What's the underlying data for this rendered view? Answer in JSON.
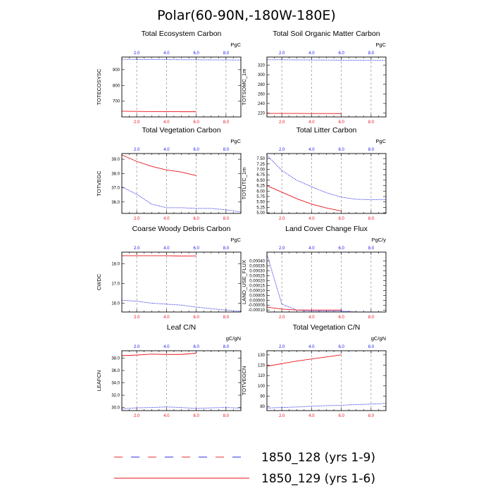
{
  "figure": {
    "title": "Polar(60-90N,-180W-180E)"
  },
  "colors": {
    "case1": "#1616e8",
    "case2": "#e8141b",
    "gridline": "#9a9a9a"
  },
  "legend": [
    {
      "label": "1850_128 (yrs 1-9)",
      "style": "dashed",
      "color_key": "legend_dash"
    },
    {
      "label": "1850_129 (yrs 1-6)",
      "style": "solid",
      "color_key": "case2"
    }
  ],
  "chart_data": [
    {
      "type": "line",
      "title": "Total Ecosystem Carbon",
      "ylabel": "TOTECOSYSC",
      "units": "PgC",
      "xlim": [
        1,
        9
      ],
      "ylim": [
        600,
        980
      ],
      "yticks": [
        700,
        800,
        900
      ],
      "xticks_bottom": [
        "2.0",
        "4.0",
        "6.0",
        "8.0"
      ],
      "xticks_top": [
        "2.0",
        "4.0",
        "6.0",
        "8.0"
      ],
      "series": [
        {
          "x": [
            1,
            2,
            3,
            4,
            5,
            6,
            7,
            8,
            9
          ],
          "y": [
            966,
            965,
            964,
            964,
            963,
            963,
            962,
            962,
            961
          ],
          "style": "dotted",
          "color_key": "case1"
        },
        {
          "x": [
            1,
            2,
            3,
            4,
            5,
            6
          ],
          "y": [
            636,
            635,
            634,
            634,
            633,
            633
          ],
          "style": "solid",
          "color_key": "case2"
        }
      ]
    },
    {
      "type": "line",
      "title": "Total Soil Organic Matter Carbon",
      "ylabel": "TOTSOMC_1m",
      "units": "PgC",
      "xlim": [
        1,
        9
      ],
      "ylim": [
        212,
        337
      ],
      "yticks": [
        220,
        240,
        260,
        280,
        300,
        320
      ],
      "xticks_bottom": [
        "2.0",
        "4.0",
        "6.0",
        "8.0"
      ],
      "xticks_top": [
        "2.0",
        "4.0",
        "6.0",
        "8.0"
      ],
      "series": [
        {
          "x": [
            1,
            2,
            3,
            4,
            5,
            6,
            7,
            8,
            9
          ],
          "y": [
            331.5,
            331.3,
            331.1,
            330.9,
            330.7,
            330.5,
            330.3,
            330.1,
            329.9
          ],
          "style": "dotted",
          "color_key": "case1"
        },
        {
          "x": [
            1,
            2,
            3,
            4,
            5,
            6
          ],
          "y": [
            219.3,
            219.2,
            219.2,
            219.1,
            219.1,
            219.0
          ],
          "style": "solid",
          "color_key": "case2"
        }
      ]
    },
    {
      "type": "line",
      "title": "Total Vegetation Carbon",
      "ylabel": "TOTVEGC",
      "units": "PgC",
      "xlim": [
        1,
        9
      ],
      "ylim": [
        35.2,
        39.4
      ],
      "yticks": [
        36.0,
        37.0,
        38.0,
        39.0
      ],
      "yticks_fmt": 1,
      "xticks_bottom": [
        "2.0",
        "4.0",
        "6.0",
        "8.0"
      ],
      "xticks_top": [
        "2.0",
        "4.0",
        "6.0",
        "8.0"
      ],
      "series": [
        {
          "x": [
            1,
            2,
            3,
            4,
            5,
            6,
            7,
            8,
            9
          ],
          "y": [
            37.05,
            36.55,
            35.85,
            35.6,
            35.6,
            35.55,
            35.55,
            35.45,
            35.3
          ],
          "style": "dotted",
          "color_key": "case1"
        },
        {
          "x": [
            1,
            2,
            3,
            4,
            5,
            6
          ],
          "y": [
            39.3,
            38.85,
            38.5,
            38.25,
            38.1,
            37.85
          ],
          "style": "solid",
          "color_key": "case2"
        }
      ]
    },
    {
      "type": "line",
      "title": "Total Litter Carbon",
      "ylabel": "TOTLITC_1m",
      "units": "PgC",
      "xlim": [
        1,
        9
      ],
      "ylim": [
        4.97,
        7.73
      ],
      "yticks": [
        5.0,
        5.25,
        5.5,
        5.75,
        6.0,
        6.25,
        6.5,
        6.75,
        7.0,
        7.25,
        7.5
      ],
      "yticks_fmt": 2,
      "xticks_bottom": [
        "2.0",
        "4.0",
        "6.0",
        "8.0"
      ],
      "xticks_top": [
        "2.0",
        "4.0",
        "6.0",
        "8.0"
      ],
      "series": [
        {
          "x": [
            1,
            2,
            3,
            4,
            5,
            6,
            7,
            8,
            9
          ],
          "y": [
            7.65,
            6.95,
            6.5,
            6.2,
            5.92,
            5.72,
            5.62,
            5.6,
            5.62
          ],
          "style": "dotted",
          "color_key": "case1"
        },
        {
          "x": [
            1,
            2,
            3,
            4,
            5,
            6
          ],
          "y": [
            6.25,
            5.95,
            5.65,
            5.4,
            5.22,
            5.08
          ],
          "style": "solid",
          "color_key": "case2"
        }
      ]
    },
    {
      "type": "line",
      "title": "Coarse Woody Debris Carbon",
      "ylabel": "CWDC",
      "units": "PgC",
      "xlim": [
        1,
        9
      ],
      "ylim": [
        15.55,
        18.6
      ],
      "yticks": [
        16.0,
        17.0,
        18.0
      ],
      "yticks_fmt": 1,
      "xticks_bottom": [
        "2.0",
        "4.0",
        "6.0",
        "8.0"
      ],
      "xticks_top": [
        "2.0",
        "4.0",
        "6.0",
        "8.0"
      ],
      "series": [
        {
          "x": [
            1,
            2,
            3,
            4,
            5,
            6,
            7,
            8,
            9
          ],
          "y": [
            16.15,
            16.1,
            16.0,
            15.95,
            15.9,
            15.8,
            15.72,
            15.65,
            15.58
          ],
          "style": "dotted",
          "color_key": "case1"
        },
        {
          "x": [
            1,
            2,
            3,
            4,
            5,
            6
          ],
          "y": [
            18.42,
            18.42,
            18.42,
            18.42,
            18.4,
            18.41
          ],
          "style": "solid",
          "color_key": "case2"
        }
      ]
    },
    {
      "type": "line",
      "title": "Land Cover Change Flux",
      "ylabel": "LAND_USE_FLUX",
      "units": "PgC/y",
      "xlim": [
        1,
        9
      ],
      "ylim": [
        -0.00012,
        0.00049
      ],
      "yticks": [
        -0.0001,
        -5e-05,
        0.0,
        5e-05,
        0.0001,
        0.00015,
        0.0002,
        0.00025,
        0.0003,
        0.00035,
        0.0004
      ],
      "yticks_fmt": 5,
      "xticks_bottom": [
        "2.0",
        "4.0",
        "6.0",
        "8.0"
      ],
      "xticks_top": [
        "2.0",
        "4.0",
        "6.0",
        "8.0"
      ],
      "series": [
        {
          "x": [
            1,
            2,
            3,
            4,
            5,
            6,
            7,
            8,
            9
          ],
          "y": [
            0.00047,
            -4e-05,
            -0.0001,
            -0.00011,
            -0.00011,
            -0.00011,
            -0.00012,
            -0.00012,
            -0.00012
          ],
          "style": "dotted",
          "color_key": "case1"
        },
        {
          "x": [
            1,
            2,
            3,
            4,
            5,
            6
          ],
          "y": [
            -7e-05,
            -9e-05,
            -0.0001,
            -0.0001,
            -0.0001,
            -0.0001
          ],
          "style": "solid",
          "color_key": "case2"
        }
      ]
    },
    {
      "type": "line",
      "title": "Leaf C/N",
      "ylabel": "LEAFCN",
      "units": "gC/gN",
      "xlim": [
        1,
        9
      ],
      "ylim": [
        29.5,
        39.2
      ],
      "yticks": [
        30.0,
        32.0,
        34.0,
        36.0,
        38.0
      ],
      "yticks_fmt": 1,
      "xticks_bottom": [
        "2.0",
        "4.0",
        "6.0",
        "8.0"
      ],
      "xticks_top": [
        "2.0",
        "4.0",
        "6.0",
        "8.0"
      ],
      "series": [
        {
          "x": [
            1,
            2,
            3,
            4,
            5,
            6,
            7,
            8,
            9
          ],
          "y": [
            29.8,
            29.95,
            30.0,
            30.1,
            30.0,
            29.85,
            29.95,
            30.0,
            29.9
          ],
          "style": "dotted",
          "color_key": "case1"
        },
        {
          "x": [
            1,
            2,
            3,
            4,
            5,
            6
          ],
          "y": [
            38.4,
            38.5,
            38.65,
            38.6,
            38.6,
            38.8
          ],
          "style": "solid",
          "color_key": "case2"
        }
      ]
    },
    {
      "type": "line",
      "title": "Total Vegetation C/N",
      "ylabel": "TOTVEGCN",
      "units": "gC/gN",
      "xlim": [
        1,
        9
      ],
      "ylim": [
        76,
        134
      ],
      "yticks": [
        80,
        90,
        100,
        110,
        120,
        130
      ],
      "xticks_bottom": [
        "2.0",
        "4.0",
        "6.0",
        "8.0"
      ],
      "xticks_top": [
        "2.0",
        "4.0",
        "6.0",
        "8.0"
      ],
      "series": [
        {
          "x": [
            1,
            2,
            3,
            4,
            5,
            6,
            7,
            8,
            9
          ],
          "y": [
            78.5,
            79,
            79.5,
            80.2,
            80.8,
            81.2,
            81.8,
            82.3,
            83
          ],
          "style": "dotted",
          "color_key": "case1"
        },
        {
          "x": [
            1,
            2,
            3,
            4,
            5,
            6
          ],
          "y": [
            119,
            121.5,
            124,
            126,
            128,
            130
          ],
          "style": "solid",
          "color_key": "case2"
        }
      ]
    }
  ]
}
